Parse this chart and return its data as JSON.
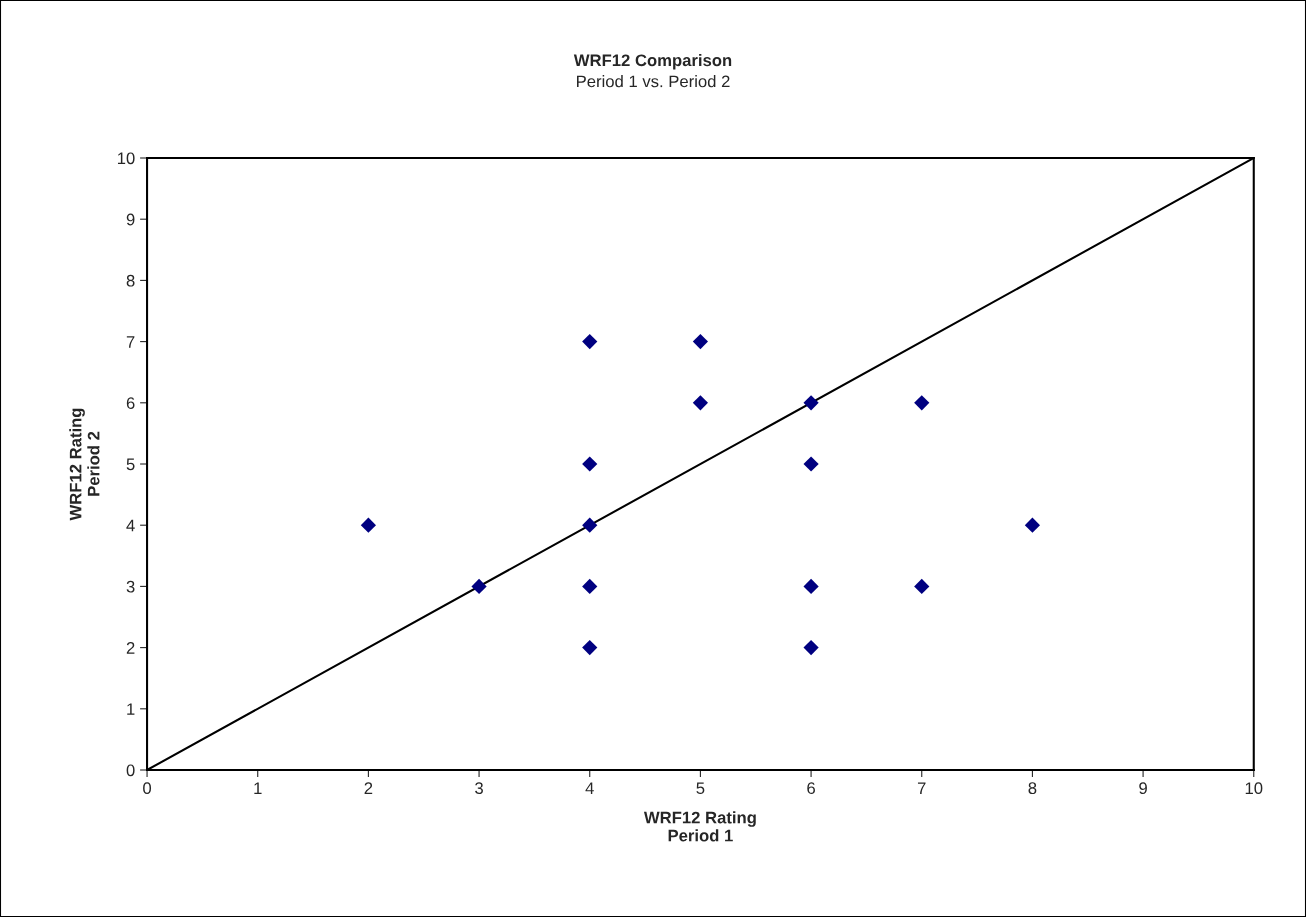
{
  "chart_data": {
    "type": "scatter",
    "title": "WRF12 Comparison",
    "subtitle": "Period 1 vs. Period 2",
    "xlabel": "WRF12 Rating\nPeriod 1",
    "ylabel": "WRF12 Rating\nPeriod 2",
    "xlim": [
      0,
      10
    ],
    "ylim": [
      0,
      10
    ],
    "xticks": [
      0,
      1,
      2,
      3,
      4,
      5,
      6,
      7,
      8,
      9,
      10
    ],
    "yticks": [
      0,
      1,
      2,
      3,
      4,
      5,
      6,
      7,
      8,
      9,
      10
    ],
    "grid": false,
    "legend": false,
    "series": [
      {
        "color": "#000080",
        "marker": "diamond",
        "x": [
          2,
          3,
          4,
          4,
          4,
          4,
          4,
          5,
          5,
          6,
          6,
          6,
          6,
          7,
          7,
          8
        ],
        "values": [
          4,
          3,
          7,
          5,
          4,
          3,
          2,
          7,
          6,
          6,
          5,
          3,
          2,
          6,
          3,
          4
        ]
      },
      {
        "type": "line",
        "color": "#000000",
        "marker": "none",
        "line_style": "solid",
        "x": [
          0,
          10
        ],
        "values": [
          0,
          10
        ]
      }
    ]
  }
}
